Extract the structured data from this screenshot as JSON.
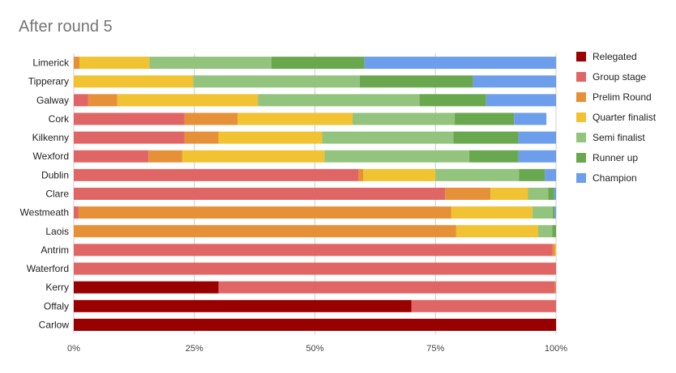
{
  "chart_data": {
    "type": "bar",
    "orientation": "horizontal",
    "stacked": "percent",
    "title": "After round 5",
    "xlabel": "",
    "ylabel": "",
    "xlim": [
      0,
      100
    ],
    "x_ticks": [
      "0%",
      "25%",
      "50%",
      "75%",
      "100%"
    ],
    "grid": true,
    "legend_position": "right",
    "categories": [
      "Limerick",
      "Tipperary",
      "Galway",
      "Cork",
      "Kilkenny",
      "Wexford",
      "Dublin",
      "Clare",
      "Westmeath",
      "Laois",
      "Antrim",
      "Waterford",
      "Kerry",
      "Offaly",
      "Carlow"
    ],
    "series": [
      {
        "name": "Relegated",
        "color": "#990000",
        "values": [
          0,
          0,
          0,
          0,
          0,
          0,
          0,
          0,
          0,
          0,
          0,
          0,
          30,
          70,
          100
        ]
      },
      {
        "name": "Group stage",
        "color": "#e06666",
        "values": [
          0,
          0,
          3,
          23,
          23,
          15.5,
          59,
          77,
          1,
          0,
          99.3,
          100,
          69.8,
          30,
          0
        ]
      },
      {
        "name": "Prelim Round",
        "color": "#e69138",
        "values": [
          1.2,
          0,
          6,
          11,
          7,
          7,
          1,
          9.4,
          77.3,
          79.3,
          0.5,
          0,
          0.2,
          0,
          0
        ]
      },
      {
        "name": "Quarter finalist",
        "color": "#f1c232",
        "values": [
          14.5,
          24.8,
          29.2,
          23.8,
          21.5,
          29.5,
          15,
          7.8,
          16.8,
          17,
          0.2,
          0,
          0,
          0,
          0
        ]
      },
      {
        "name": "Semi finalist",
        "color": "#93c47d",
        "values": [
          25.3,
          34.5,
          33.5,
          21.2,
          27.2,
          30,
          17.3,
          4.2,
          4.2,
          2.9,
          0,
          0,
          0,
          0,
          0
        ]
      },
      {
        "name": "Runner up",
        "color": "#6aa84f",
        "values": [
          19.3,
          23.5,
          13.8,
          12.3,
          13.5,
          10.2,
          5.4,
          1.2,
          0.4,
          0.8,
          0,
          0,
          0,
          0,
          0
        ]
      },
      {
        "name": "Champion",
        "color": "#6d9eeb",
        "values": [
          39.7,
          17.2,
          14.5,
          6.7,
          7.8,
          7.8,
          2.3,
          0.4,
          0.3,
          0,
          0,
          0,
          0,
          0,
          0
        ]
      }
    ]
  }
}
